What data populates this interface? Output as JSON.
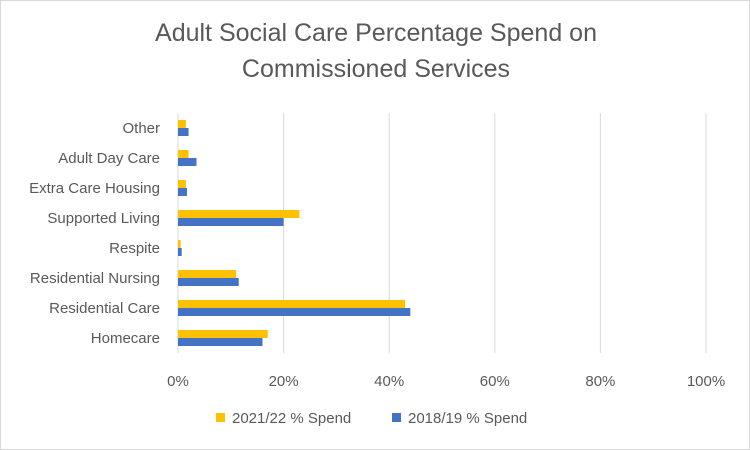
{
  "chart_data": {
    "type": "bar",
    "orientation": "horizontal",
    "title_lines": [
      "Adult Social Care Percentage Spend on",
      "Commissioned Services"
    ],
    "categories": [
      "Homecare",
      "Residential Care",
      "Residential Nursing",
      "Respite",
      "Supported Living",
      "Extra Care Housing",
      "Adult Day Care",
      "Other"
    ],
    "series": [
      {
        "name": "2021/22 % Spend",
        "color": "#FFC000",
        "values": [
          17,
          43,
          11,
          0.5,
          23,
          1.5,
          2,
          1.5
        ]
      },
      {
        "name": "2018/19 % Spend",
        "color": "#4472C4",
        "values": [
          16,
          44,
          11.5,
          0.7,
          20,
          1.7,
          3.5,
          2
        ]
      }
    ],
    "xlim": [
      0,
      100
    ],
    "xticks": [
      "0%",
      "20%",
      "40%",
      "60%",
      "80%",
      "100%"
    ],
    "xtick_values": [
      0,
      20,
      40,
      60,
      80,
      100
    ],
    "grid": true,
    "legend_position": "bottom"
  }
}
